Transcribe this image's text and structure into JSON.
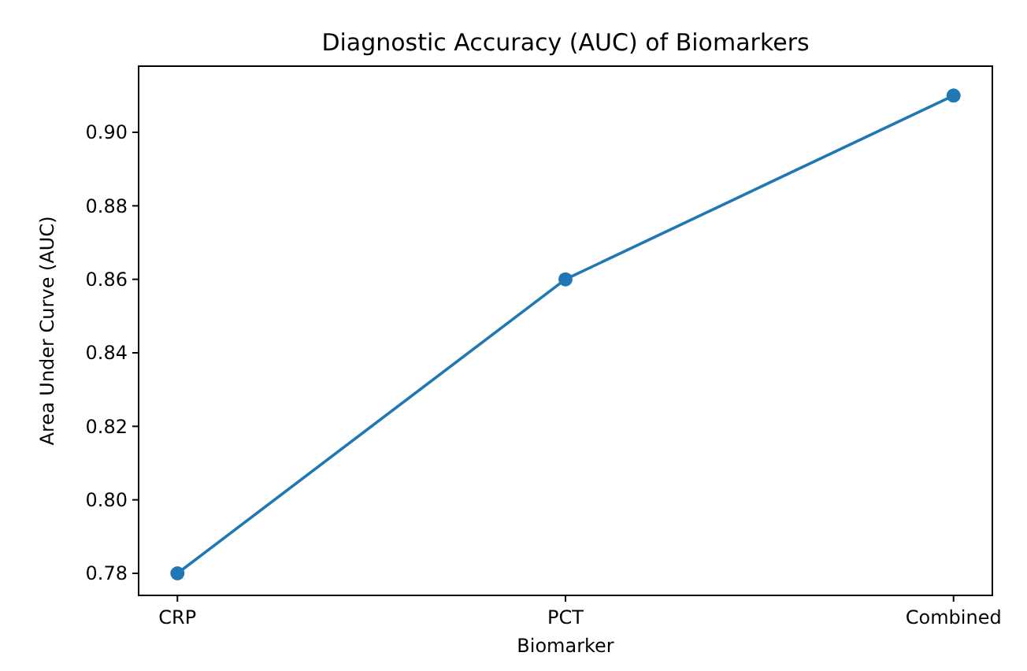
{
  "chart_data": {
    "type": "line",
    "title": "Diagnostic Accuracy (AUC) of Biomarkers",
    "xlabel": "Biomarker",
    "ylabel": "Area Under Curve (AUC)",
    "categories": [
      "CRP",
      "PCT",
      "Combined"
    ],
    "series": [
      {
        "color": "#1f77b4",
        "values": [
          0.78,
          0.86,
          0.91
        ]
      }
    ],
    "ylim": [
      0.774,
      0.918
    ],
    "yticks": [
      {
        "value": 0.78,
        "label": "0.78"
      },
      {
        "value": 0.8,
        "label": "0.80"
      },
      {
        "value": 0.82,
        "label": "0.82"
      },
      {
        "value": 0.84,
        "label": "0.84"
      },
      {
        "value": 0.86,
        "label": "0.86"
      },
      {
        "value": 0.88,
        "label": "0.88"
      },
      {
        "value": 0.9,
        "label": "0.90"
      }
    ],
    "marker": "circle",
    "line_style": "solid",
    "grid": false
  }
}
